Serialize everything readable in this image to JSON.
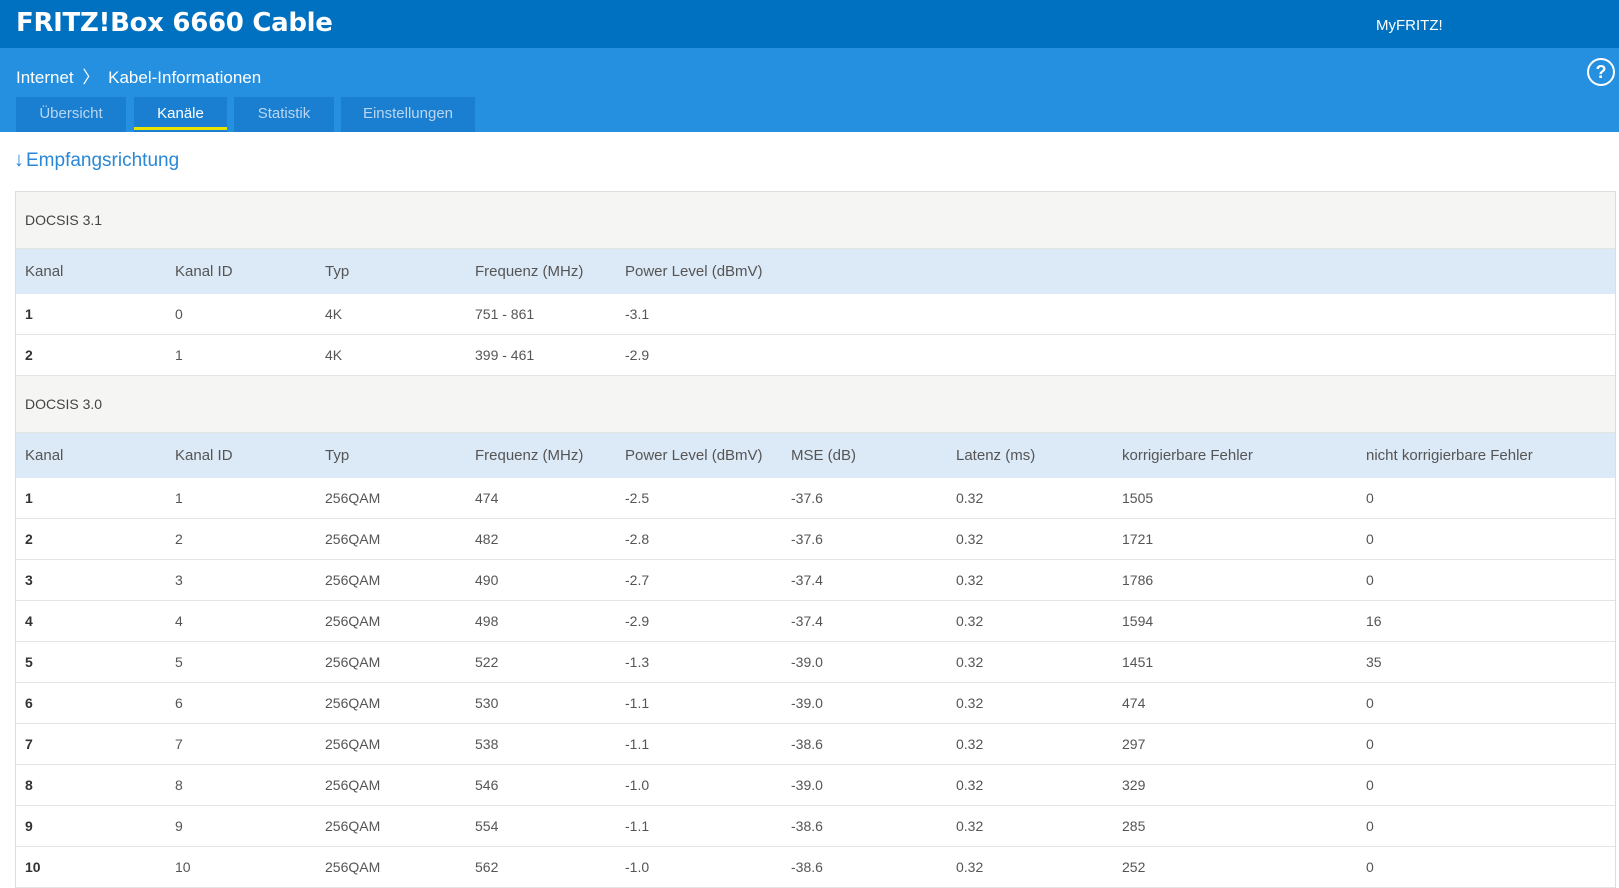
{
  "header": {
    "brand": "FRITZ!Box 6660 Cable",
    "myfritz": "MyFRITZ!"
  },
  "breadcrumb": {
    "parent": "Internet",
    "separator": "〉",
    "current": "Kabel-Informationen"
  },
  "help_icon": "?",
  "tabs": [
    {
      "label": "Übersicht",
      "active": false
    },
    {
      "label": "Kanäle",
      "active": true
    },
    {
      "label": "Statistik",
      "active": false
    },
    {
      "label": "Einstellungen",
      "active": false
    }
  ],
  "section": {
    "arrow": "↓",
    "title": "Empfangsrichtung"
  },
  "docsis31": {
    "title": "DOCSIS 3.1",
    "headers": [
      "Kanal",
      "Kanal ID",
      "Typ",
      "Frequenz (MHz)",
      "Power Level (dBmV)"
    ],
    "rows": [
      [
        "1",
        "0",
        "4K",
        "751 - 861",
        "-3.1"
      ],
      [
        "2",
        "1",
        "4K",
        "399 - 461",
        "-2.9"
      ]
    ]
  },
  "docsis30": {
    "title": "DOCSIS 3.0",
    "headers": [
      "Kanal",
      "Kanal ID",
      "Typ",
      "Frequenz (MHz)",
      "Power Level (dBmV)",
      "MSE (dB)",
      "Latenz (ms)",
      "korrigierbare Fehler",
      "nicht korrigierbare Fehler"
    ],
    "rows": [
      [
        "1",
        "1",
        "256QAM",
        "474",
        "-2.5",
        "-37.6",
        "0.32",
        "1505",
        "0"
      ],
      [
        "2",
        "2",
        "256QAM",
        "482",
        "-2.8",
        "-37.6",
        "0.32",
        "1721",
        "0"
      ],
      [
        "3",
        "3",
        "256QAM",
        "490",
        "-2.7",
        "-37.4",
        "0.32",
        "1786",
        "0"
      ],
      [
        "4",
        "4",
        "256QAM",
        "498",
        "-2.9",
        "-37.4",
        "0.32",
        "1594",
        "16"
      ],
      [
        "5",
        "5",
        "256QAM",
        "522",
        "-1.3",
        "-39.0",
        "0.32",
        "1451",
        "35"
      ],
      [
        "6",
        "6",
        "256QAM",
        "530",
        "-1.1",
        "-39.0",
        "0.32",
        "474",
        "0"
      ],
      [
        "7",
        "7",
        "256QAM",
        "538",
        "-1.1",
        "-38.6",
        "0.32",
        "297",
        "0"
      ],
      [
        "8",
        "8",
        "256QAM",
        "546",
        "-1.0",
        "-39.0",
        "0.32",
        "329",
        "0"
      ],
      [
        "9",
        "9",
        "256QAM",
        "554",
        "-1.1",
        "-38.6",
        "0.32",
        "285",
        "0"
      ],
      [
        "10",
        "10",
        "256QAM",
        "562",
        "-1.0",
        "-38.6",
        "0.32",
        "252",
        "0"
      ]
    ]
  }
}
